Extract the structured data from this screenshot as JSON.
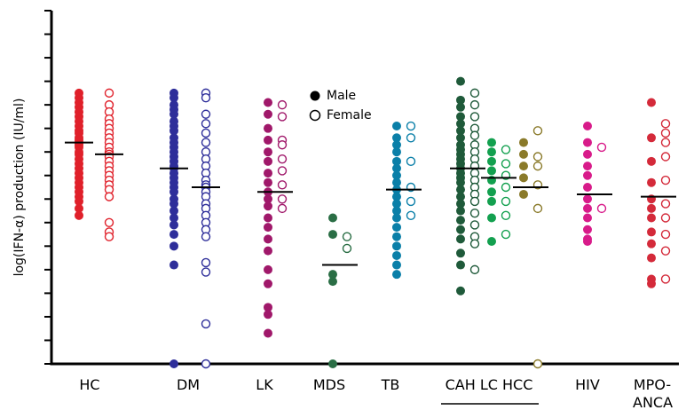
{
  "chart_data": {
    "type": "strip",
    "y_label": "log(IFN-α) production (IU/ml)",
    "ylim": [
      0,
      15
    ],
    "yticks": [
      0,
      1,
      2,
      3,
      4,
      5,
      6,
      7,
      8,
      9,
      10,
      11,
      12,
      13,
      14,
      15
    ],
    "legend": [
      "Male",
      "Female"
    ],
    "groups": [
      {
        "label": "HC",
        "subsets": [
          {
            "color": "#e0202a",
            "male": [
              11.5,
              11.3,
              11.1,
              10.9,
              10.7,
              10.5,
              10.3,
              10.1,
              9.9,
              9.8,
              9.6,
              9.5,
              9.4,
              9.3,
              9.2,
              9.0,
              8.9,
              8.7,
              8.5,
              8.3,
              8.1,
              7.9,
              7.7,
              7.5,
              7.3,
              7.1,
              6.9,
              6.6,
              6.3
            ],
            "female": [
              11.5,
              11.0,
              10.7,
              10.4,
              10.2,
              10.0,
              9.8,
              9.6,
              9.4,
              9.2,
              9.0,
              8.9,
              8.8,
              8.6,
              8.4,
              8.2,
              8.0,
              7.8,
              7.6,
              7.4,
              7.1,
              6.0,
              5.6,
              5.4
            ],
            "median": [
              9.4,
              8.9
            ]
          }
        ]
      },
      {
        "label": "DM",
        "subsets": [
          {
            "color": "#2e2e9a",
            "male": [
              11.5,
              11.3,
              11.0,
              10.8,
              10.6,
              10.3,
              10.1,
              9.9,
              9.6,
              9.4,
              9.2,
              9.0,
              8.8,
              8.6,
              8.4,
              8.3,
              8.1,
              7.9,
              7.7,
              7.5,
              7.3,
              7.0,
              6.8,
              6.5,
              6.2,
              5.9,
              5.5,
              5.0,
              4.2,
              0
            ],
            "female": [
              11.5,
              11.3,
              10.6,
              10.2,
              9.8,
              9.4,
              9.0,
              8.7,
              8.4,
              8.1,
              7.8,
              7.6,
              7.5,
              7.3,
              7.1,
              6.8,
              6.6,
              6.3,
              6.0,
              5.7,
              5.4,
              4.3,
              3.9,
              1.7,
              0
            ],
            "median": [
              8.3,
              7.5
            ]
          }
        ]
      },
      {
        "label": "LK",
        "subsets": [
          {
            "color": "#a0186a",
            "male": [
              11.1,
              10.6,
              10.0,
              9.5,
              9.0,
              8.6,
              8.1,
              7.7,
              7.3,
              7.0,
              6.7,
              6.2,
              5.8,
              5.3,
              4.8,
              4.0,
              3.4,
              2.4,
              2.1,
              1.3
            ],
            "female": [
              11.0,
              10.5,
              9.5,
              9.3,
              8.7,
              8.2,
              7.6,
              7.0,
              6.6
            ],
            "median": [
              7.3
            ]
          }
        ]
      },
      {
        "label": "MDS",
        "subsets": [
          {
            "color": "#2a6e45",
            "male": [
              6.2,
              5.5,
              3.8,
              3.5,
              0
            ],
            "female": [
              5.4,
              4.9
            ],
            "median": [
              4.2
            ]
          }
        ]
      },
      {
        "label": "TB",
        "subsets": [
          {
            "color": "#0a7fa8",
            "male": [
              10.1,
              9.6,
              9.3,
              9.0,
              8.6,
              8.3,
              8.0,
              7.7,
              7.4,
              7.1,
              6.8,
              6.5,
              6.2,
              5.8,
              5.4,
              5.0,
              4.6,
              4.2,
              3.8
            ],
            "female": [
              10.1,
              9.6,
              8.6,
              7.5,
              6.9,
              6.3
            ],
            "median": [
              7.4
            ]
          }
        ]
      },
      {
        "label": "CAH LC HCC",
        "subsets": [
          {
            "color": "#1f5a3a",
            "male": [
              12.0,
              11.2,
              10.9,
              10.5,
              10.2,
              9.9,
              9.6,
              9.3,
              9.1,
              8.9,
              8.7,
              8.5,
              8.3,
              8.1,
              7.9,
              7.7,
              7.4,
              7.1,
              6.8,
              6.5,
              6.1,
              5.7,
              5.3,
              4.7,
              4.2,
              3.1
            ],
            "female": [
              11.5,
              11.0,
              10.5,
              10.0,
              9.7,
              9.3,
              9.0,
              8.7,
              8.4,
              8.1,
              7.8,
              7.5,
              7.2,
              6.9,
              6.4,
              5.9,
              5.4,
              5.1,
              4.0
            ],
            "median": [
              8.3
            ]
          },
          {
            "color": "#13a04f",
            "male": [
              9.4,
              9.0,
              8.6,
              8.2,
              7.8,
              7.3,
              6.9,
              6.2,
              5.2
            ],
            "female": [
              9.1,
              8.5,
              8.0,
              7.5,
              6.9,
              6.3,
              5.5
            ],
            "median": [
              7.9
            ]
          },
          {
            "color": "#8a7a2a",
            "male": [
              9.4,
              8.9,
              8.4,
              7.9,
              7.2
            ],
            "female": [
              9.9,
              8.8,
              8.4,
              7.6,
              6.6,
              0
            ],
            "median": [
              7.5
            ]
          }
        ]
      },
      {
        "label": "HIV",
        "subsets": [
          {
            "color": "#d81b8a",
            "male": [
              10.1,
              9.4,
              8.9,
              8.4,
              8.0,
              7.5,
              7.0,
              6.6,
              6.2,
              5.7,
              5.3,
              5.2
            ],
            "female": [
              9.2,
              6.6
            ],
            "median": [
              7.2
            ]
          }
        ]
      },
      {
        "label": "MPO-ANCA",
        "subsets": [
          {
            "color": "#d42a3a",
            "male": [
              11.1,
              9.6,
              8.6,
              7.7,
              7.0,
              6.6,
              6.2,
              5.6,
              5.1,
              4.5,
              3.6,
              3.4
            ],
            "female": [
              10.2,
              9.8,
              9.4,
              8.8,
              7.8,
              6.8,
              6.2,
              5.5,
              4.8,
              3.6
            ],
            "median": [
              7.1
            ]
          }
        ]
      }
    ]
  }
}
